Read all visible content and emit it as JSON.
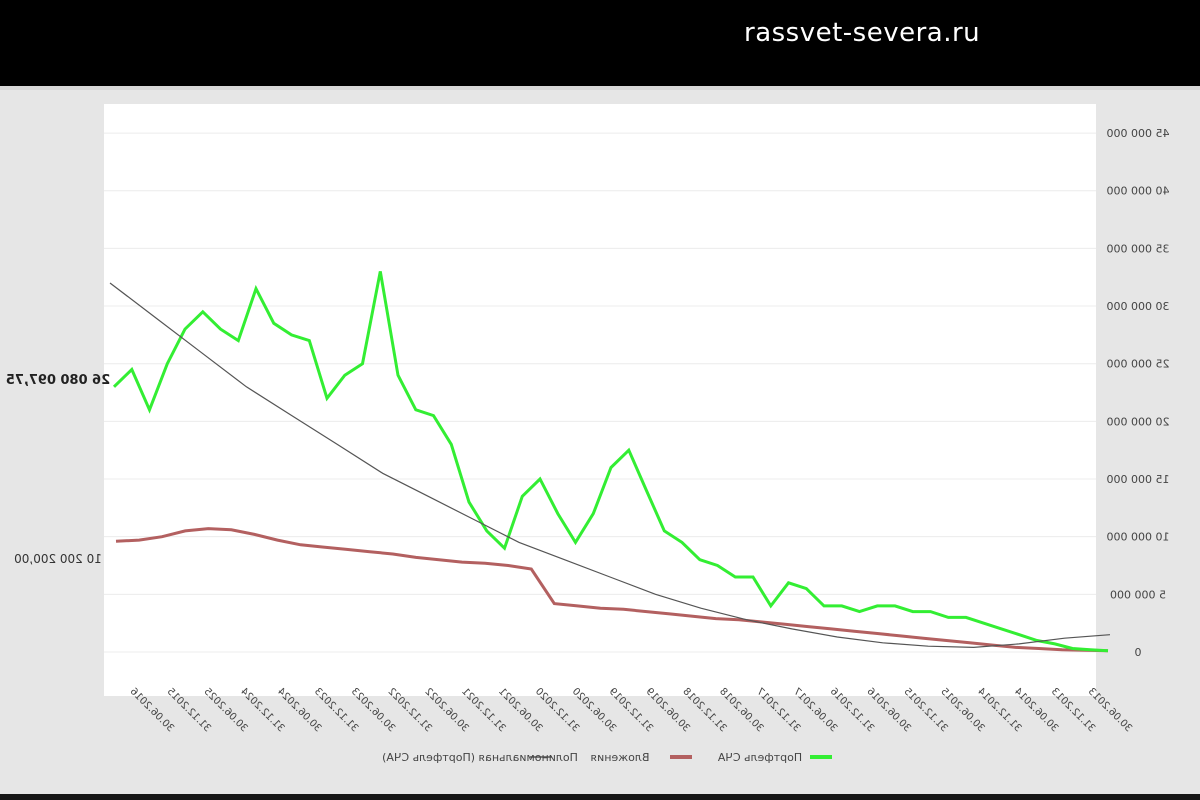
{
  "watermark": "rassvet-severa.ru",
  "chart_data": {
    "type": "line",
    "note_mirrored": true,
    "y_ticks": [
      "0",
      "5 000 000",
      "10 000 000",
      "15 000 000",
      "20 000 000",
      "25 000 000",
      "30 000 000",
      "35 000 000",
      "40 000 000",
      "45 000 000"
    ],
    "ylim": [
      0,
      47000000
    ],
    "x_ticks": [
      "30.06.2016",
      "31.12.2015",
      "30.06.2025",
      "31.12.2024",
      "30.06.2024",
      "31.12.2023",
      "30.06.2023",
      "31.12.2022",
      "30.06.2022",
      "31.12.2021",
      "30.06.2021",
      "31.12.2020",
      "30.06.2020",
      "31.12.2019",
      "30.06.2019",
      "31.12.2018",
      "30.06.2018",
      "31.12.2017",
      "30.06.2017",
      "31.12.2016",
      "30.06.2016",
      "31.12.2015",
      "30.06.2015",
      "31.12.2014",
      "30.06.2014",
      "31.12.2013",
      "30.06.2013"
    ],
    "annotations": [
      {
        "text": "26 080 097,75",
        "series": "Портфель СЧА"
      },
      {
        "text": "10 200 200,00",
        "series": "Вложения"
      }
    ],
    "legend": {
      "placement": "bottom",
      "entries": [
        "Портфель СЧА",
        "Вложения",
        "Полиномиальная (Портфель СЧА)"
      ]
    },
    "colors": {
      "portfolio": "#33ee33",
      "invest": "#b36060",
      "trend": "#555555"
    },
    "series": [
      {
        "name": "Портфель СЧА",
        "values": [
          23000000,
          24500000,
          21000000,
          25000000,
          28000000,
          29500000,
          28000000,
          27000000,
          31500000,
          28500000,
          27500000,
          27000000,
          22000000,
          24000000,
          25000000,
          33000000,
          24000000,
          21000000,
          20500000,
          18000000,
          13000000,
          10500000,
          9000000,
          13500000,
          15000000,
          12000000,
          9500000,
          12000000,
          16000000,
          17500000,
          14000000,
          10500000,
          9500000,
          8000000,
          7500000,
          6500000,
          6500000,
          4000000,
          6000000,
          5500000,
          4000000,
          4000000,
          3500000,
          4000000,
          4000000,
          3500000,
          3500000,
          3000000,
          3000000,
          2500000,
          2000000,
          1500000,
          1000000,
          700000,
          300000,
          200000,
          100000
        ]
      },
      {
        "name": "Вложения",
        "values": [
          9600000,
          9700000,
          10000000,
          10500000,
          10700000,
          10600000,
          10200000,
          9700000,
          9300000,
          9100000,
          8900000,
          8700000,
          8500000,
          8200000,
          8000000,
          7800000,
          7700000,
          7500000,
          7200000,
          4200000,
          4000000,
          3800000,
          3700000,
          3500000,
          3300000,
          3100000,
          2900000,
          2800000,
          2600000,
          2400000,
          2200000,
          2000000,
          1800000,
          1600000,
          1400000,
          1200000,
          1000000,
          800000,
          600000,
          400000,
          300000,
          200000,
          150000,
          100000
        ]
      },
      {
        "name": "Полиномиальная (Портфель СЧА)",
        "values": [
          32000000,
          29000000,
          26000000,
          23000000,
          20500000,
          18000000,
          15500000,
          13500000,
          11500000,
          9500000,
          8000000,
          6500000,
          5000000,
          3800000,
          2800000,
          2000000,
          1300000,
          800000,
          500000,
          400000,
          700000,
          1200000,
          1500000
        ]
      }
    ]
  }
}
